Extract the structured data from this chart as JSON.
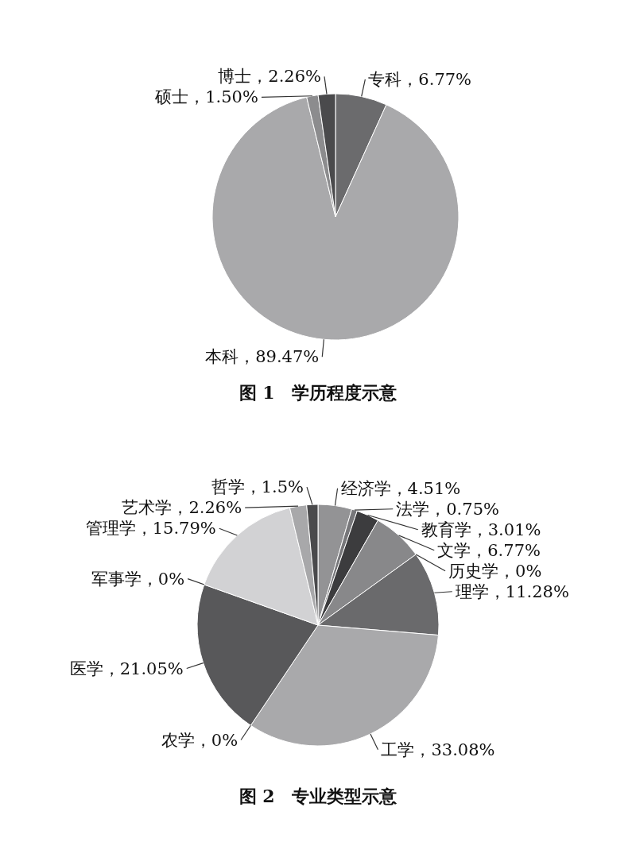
{
  "chart_data": [
    {
      "type": "pie",
      "title": "图 1　学历程度示意",
      "categories": [
        "专科",
        "本科",
        "硕士",
        "博士"
      ],
      "values": [
        6.77,
        89.47,
        1.5,
        2.26
      ],
      "value_labels": [
        "，6.77%",
        "，89.47%",
        "，1.50%",
        "，2.26%"
      ],
      "colors": [
        "#6b6b6d",
        "#a9a9ab",
        "#8c8c8e",
        "#4a4a4c"
      ]
    },
    {
      "type": "pie",
      "title": "图 2　专业类型示意",
      "categories": [
        "经济学",
        "法学",
        "教育学",
        "文学",
        "历史学",
        "理学",
        "工学",
        "农学",
        "医学",
        "军事学",
        "管理学",
        "艺术学",
        "哲学"
      ],
      "values": [
        4.51,
        0.75,
        3.01,
        6.77,
        0,
        11.28,
        33.08,
        0,
        21.05,
        0,
        15.79,
        2.26,
        1.5
      ],
      "value_labels": [
        "，4.51%",
        "，0.75%",
        "，3.01%",
        "，6.77%",
        "，0%",
        "，11.28%",
        "，33.08%",
        "，0%",
        "，21.05%",
        "，0%",
        "，15.79%",
        "，2.26%",
        "，1.5%"
      ],
      "colors": [
        "#939395",
        "#77777a",
        "#3c3c3e",
        "#88888a",
        "#6f6f71",
        "#6a6a6c",
        "#a9a9ab",
        "#9a9a9c",
        "#58585a",
        "#bbbbbd",
        "#d2d2d4",
        "#a8a8aa",
        "#4a4a4c"
      ]
    }
  ]
}
